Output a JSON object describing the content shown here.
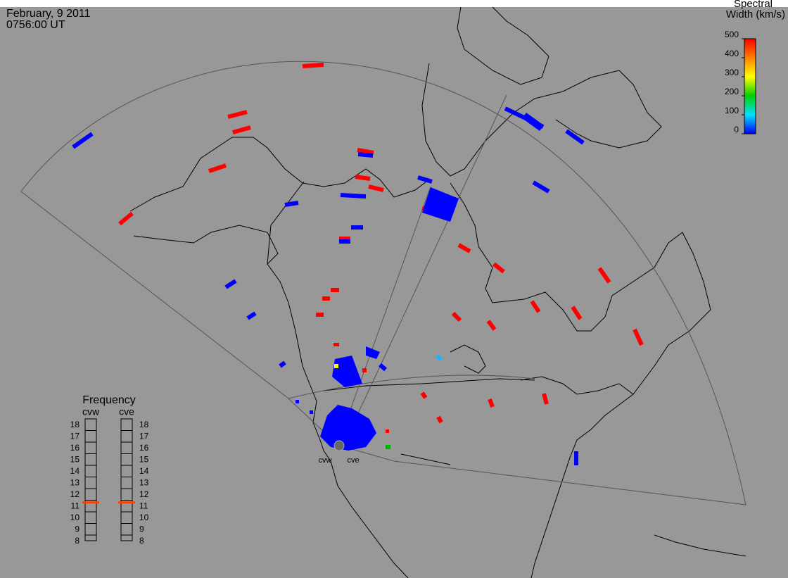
{
  "header": {
    "date": "February, 9 2011",
    "time": "0756:00 UT"
  },
  "colorbar": {
    "title_line1": "Spectral",
    "title_line2": "Width (km/s)",
    "lim": [
      0,
      500
    ],
    "ticks": [
      0,
      100,
      200,
      300,
      400,
      500
    ],
    "colors": [
      "#0000ff",
      "#00e0ff",
      "#00d000",
      "#ffff00",
      "#ff8000",
      "#ff0000"
    ]
  },
  "frequency": {
    "title": "Frequency",
    "lim": [
      8,
      18
    ],
    "ticks": [
      8,
      9,
      10,
      11,
      12,
      13,
      14,
      15,
      16,
      17,
      18
    ],
    "marker_color": "#ff4000",
    "radars": [
      {
        "name": "cvw",
        "value": 10.8
      },
      {
        "name": "cve",
        "value": 10.8
      }
    ]
  },
  "radar_labels": [
    "cvw",
    "cve"
  ]
}
